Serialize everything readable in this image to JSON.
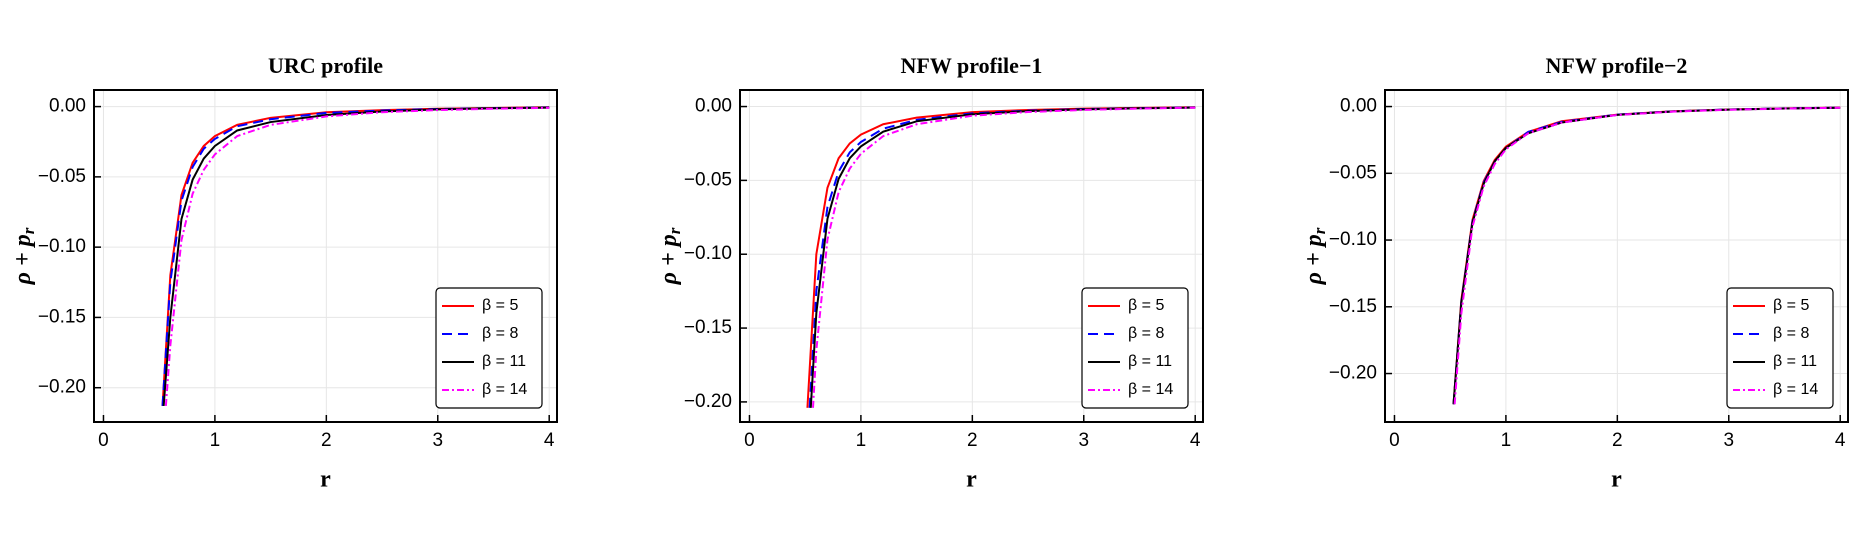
{
  "chart_data": [
    {
      "type": "line",
      "title": "URC profile",
      "xlabel": "r",
      "ylabel": {
        "text": "ρ + p",
        "subscript": "r"
      },
      "xlim": [
        -0.085,
        4.07
      ],
      "ylim": [
        -0.2244,
        0.0118
      ],
      "xticks": [
        0,
        1,
        2,
        3,
        4
      ],
      "yticks": [
        {
          "value": 0,
          "label": "0.00"
        },
        {
          "value": -0.05,
          "label": "−0.05"
        },
        {
          "value": -0.1,
          "label": "−0.10"
        },
        {
          "value": -0.15,
          "label": "−0.15"
        },
        {
          "value": -0.2,
          "label": "−0.20"
        }
      ],
      "grid": true,
      "legend": "lower right",
      "series": [
        {
          "name": "β = 5",
          "color": "#ff0000",
          "dash": "solid",
          "x": [
            0.53,
            0.6,
            0.7,
            0.8,
            0.9,
            1.0,
            1.2,
            1.5,
            2,
            2.5,
            3,
            3.5,
            4
          ],
          "values": [
            -0.213,
            -0.12,
            -0.063,
            -0.04,
            -0.028,
            -0.021,
            -0.013,
            -0.008,
            -0.004,
            -0.0025,
            -0.0015,
            -0.001,
            -0.0005
          ]
        },
        {
          "name": "β = 8",
          "color": "#0000ff",
          "dash": "dashed",
          "x": [
            0.53,
            0.6,
            0.7,
            0.8,
            0.9,
            1.0,
            1.2,
            1.5,
            2,
            2.5,
            3,
            3.5,
            4
          ],
          "values": [
            -0.213,
            -0.125,
            -0.067,
            -0.043,
            -0.03,
            -0.023,
            -0.014,
            -0.009,
            -0.0045,
            -0.0028,
            -0.0017,
            -0.0011,
            -0.0006
          ]
        },
        {
          "name": "β = 11",
          "color": "#000000",
          "dash": "solid",
          "x": [
            0.54,
            0.6,
            0.7,
            0.8,
            0.9,
            1.0,
            1.2,
            1.5,
            2,
            2.5,
            3,
            3.5,
            4
          ],
          "values": [
            -0.213,
            -0.15,
            -0.08,
            -0.052,
            -0.037,
            -0.028,
            -0.017,
            -0.011,
            -0.006,
            -0.0035,
            -0.002,
            -0.0012,
            -0.0007
          ]
        },
        {
          "name": "β = 14",
          "color": "#ff00ff",
          "dash": "dashdot",
          "x": [
            0.56,
            0.6,
            0.7,
            0.8,
            0.9,
            1.0,
            1.2,
            1.5,
            2,
            2.5,
            3,
            3.5,
            4
          ],
          "values": [
            -0.213,
            -0.17,
            -0.095,
            -0.062,
            -0.045,
            -0.034,
            -0.021,
            -0.013,
            -0.007,
            -0.004,
            -0.0025,
            -0.0015,
            -0.0009
          ]
        }
      ]
    },
    {
      "type": "line",
      "title": "NFW profile−1",
      "xlabel": "r",
      "ylabel": {
        "text": "ρ + p",
        "subscript": "r"
      },
      "xlim": [
        -0.085,
        4.07
      ],
      "ylim": [
        -0.2136,
        0.0112
      ],
      "xticks": [
        0,
        1,
        2,
        3,
        4
      ],
      "yticks": [
        {
          "value": 0,
          "label": "0.00"
        },
        {
          "value": -0.05,
          "label": "−0.05"
        },
        {
          "value": -0.1,
          "label": "−0.10"
        },
        {
          "value": -0.15,
          "label": "−0.15"
        },
        {
          "value": -0.2,
          "label": "−0.20"
        }
      ],
      "grid": true,
      "legend": "lower right",
      "series": [
        {
          "name": "β = 5",
          "color": "#ff0000",
          "dash": "solid",
          "x": [
            0.52,
            0.6,
            0.7,
            0.8,
            0.9,
            1.0,
            1.2,
            1.5,
            2,
            2.5,
            3,
            3.5,
            4
          ],
          "values": [
            -0.204,
            -0.1,
            -0.055,
            -0.035,
            -0.025,
            -0.019,
            -0.012,
            -0.0075,
            -0.0038,
            -0.0023,
            -0.0014,
            -0.0009,
            -0.0005
          ]
        },
        {
          "name": "β = 8",
          "color": "#0000ff",
          "dash": "dashed",
          "x": [
            0.54,
            0.6,
            0.7,
            0.8,
            0.9,
            1.0,
            1.2,
            1.5,
            2,
            2.5,
            3,
            3.5,
            4
          ],
          "values": [
            -0.204,
            -0.125,
            -0.068,
            -0.044,
            -0.031,
            -0.024,
            -0.015,
            -0.009,
            -0.0046,
            -0.0028,
            -0.0017,
            -0.0011,
            -0.0006
          ]
        },
        {
          "name": "β = 11",
          "color": "#000000",
          "dash": "solid",
          "x": [
            0.55,
            0.6,
            0.7,
            0.8,
            0.9,
            1.0,
            1.2,
            1.5,
            2,
            2.5,
            3,
            3.5,
            4
          ],
          "values": [
            -0.204,
            -0.14,
            -0.076,
            -0.049,
            -0.035,
            -0.027,
            -0.017,
            -0.01,
            -0.0052,
            -0.0031,
            -0.0019,
            -0.0012,
            -0.0007
          ]
        },
        {
          "name": "β = 14",
          "color": "#ff00ff",
          "dash": "dashdot",
          "x": [
            0.57,
            0.6,
            0.7,
            0.8,
            0.9,
            1.0,
            1.2,
            1.5,
            2,
            2.5,
            3,
            3.5,
            4
          ],
          "values": [
            -0.204,
            -0.165,
            -0.09,
            -0.058,
            -0.042,
            -0.032,
            -0.02,
            -0.012,
            -0.0062,
            -0.0037,
            -0.0023,
            -0.0014,
            -0.0008
          ]
        }
      ]
    },
    {
      "type": "line",
      "title": "NFW profile−2",
      "xlabel": "r",
      "ylabel": {
        "text": "ρ + p",
        "subscript": "r"
      },
      "xlim": [
        -0.085,
        4.07
      ],
      "ylim": [
        -0.2363,
        0.0124
      ],
      "xticks": [
        0,
        1,
        2,
        3,
        4
      ],
      "yticks": [
        {
          "value": 0,
          "label": "0.00"
        },
        {
          "value": -0.05,
          "label": "−0.05"
        },
        {
          "value": -0.1,
          "label": "−0.10"
        },
        {
          "value": -0.15,
          "label": "−0.15"
        },
        {
          "value": -0.2,
          "label": "−0.20"
        }
      ],
      "grid": true,
      "legend": "lower right",
      "series": [
        {
          "name": "β = 5",
          "color": "#ff0000",
          "dash": "solid",
          "x": [
            0.53,
            0.6,
            0.7,
            0.8,
            0.9,
            1.0,
            1.2,
            1.5,
            2,
            2.5,
            3,
            3.5,
            4
          ],
          "values": [
            -0.223,
            -0.145,
            -0.085,
            -0.056,
            -0.04,
            -0.03,
            -0.019,
            -0.011,
            -0.006,
            -0.0035,
            -0.0022,
            -0.0014,
            -0.0008
          ]
        },
        {
          "name": "β = 8",
          "color": "#0000ff",
          "dash": "dashed",
          "x": [
            0.53,
            0.6,
            0.7,
            0.8,
            0.9,
            1.0,
            1.2,
            1.5,
            2,
            2.5,
            3,
            3.5,
            4
          ],
          "values": [
            -0.223,
            -0.146,
            -0.086,
            -0.057,
            -0.041,
            -0.031,
            -0.019,
            -0.0115,
            -0.006,
            -0.0036,
            -0.0022,
            -0.0014,
            -0.0008
          ]
        },
        {
          "name": "β = 11",
          "color": "#000000",
          "dash": "solid",
          "x": [
            0.53,
            0.6,
            0.7,
            0.8,
            0.9,
            1.0,
            1.2,
            1.5,
            2,
            2.5,
            3,
            3.5,
            4
          ],
          "values": [
            -0.223,
            -0.147,
            -0.087,
            -0.058,
            -0.041,
            -0.031,
            -0.02,
            -0.012,
            -0.0062,
            -0.0037,
            -0.0023,
            -0.0015,
            -0.0009
          ]
        },
        {
          "name": "β = 14",
          "color": "#ff00ff",
          "dash": "dashdot",
          "x": [
            0.54,
            0.6,
            0.7,
            0.8,
            0.9,
            1.0,
            1.2,
            1.5,
            2,
            2.5,
            3,
            3.5,
            4
          ],
          "values": [
            -0.223,
            -0.155,
            -0.09,
            -0.06,
            -0.043,
            -0.032,
            -0.02,
            -0.012,
            -0.0063,
            -0.0038,
            -0.0024,
            -0.0015,
            -0.0009
          ]
        }
      ]
    }
  ]
}
